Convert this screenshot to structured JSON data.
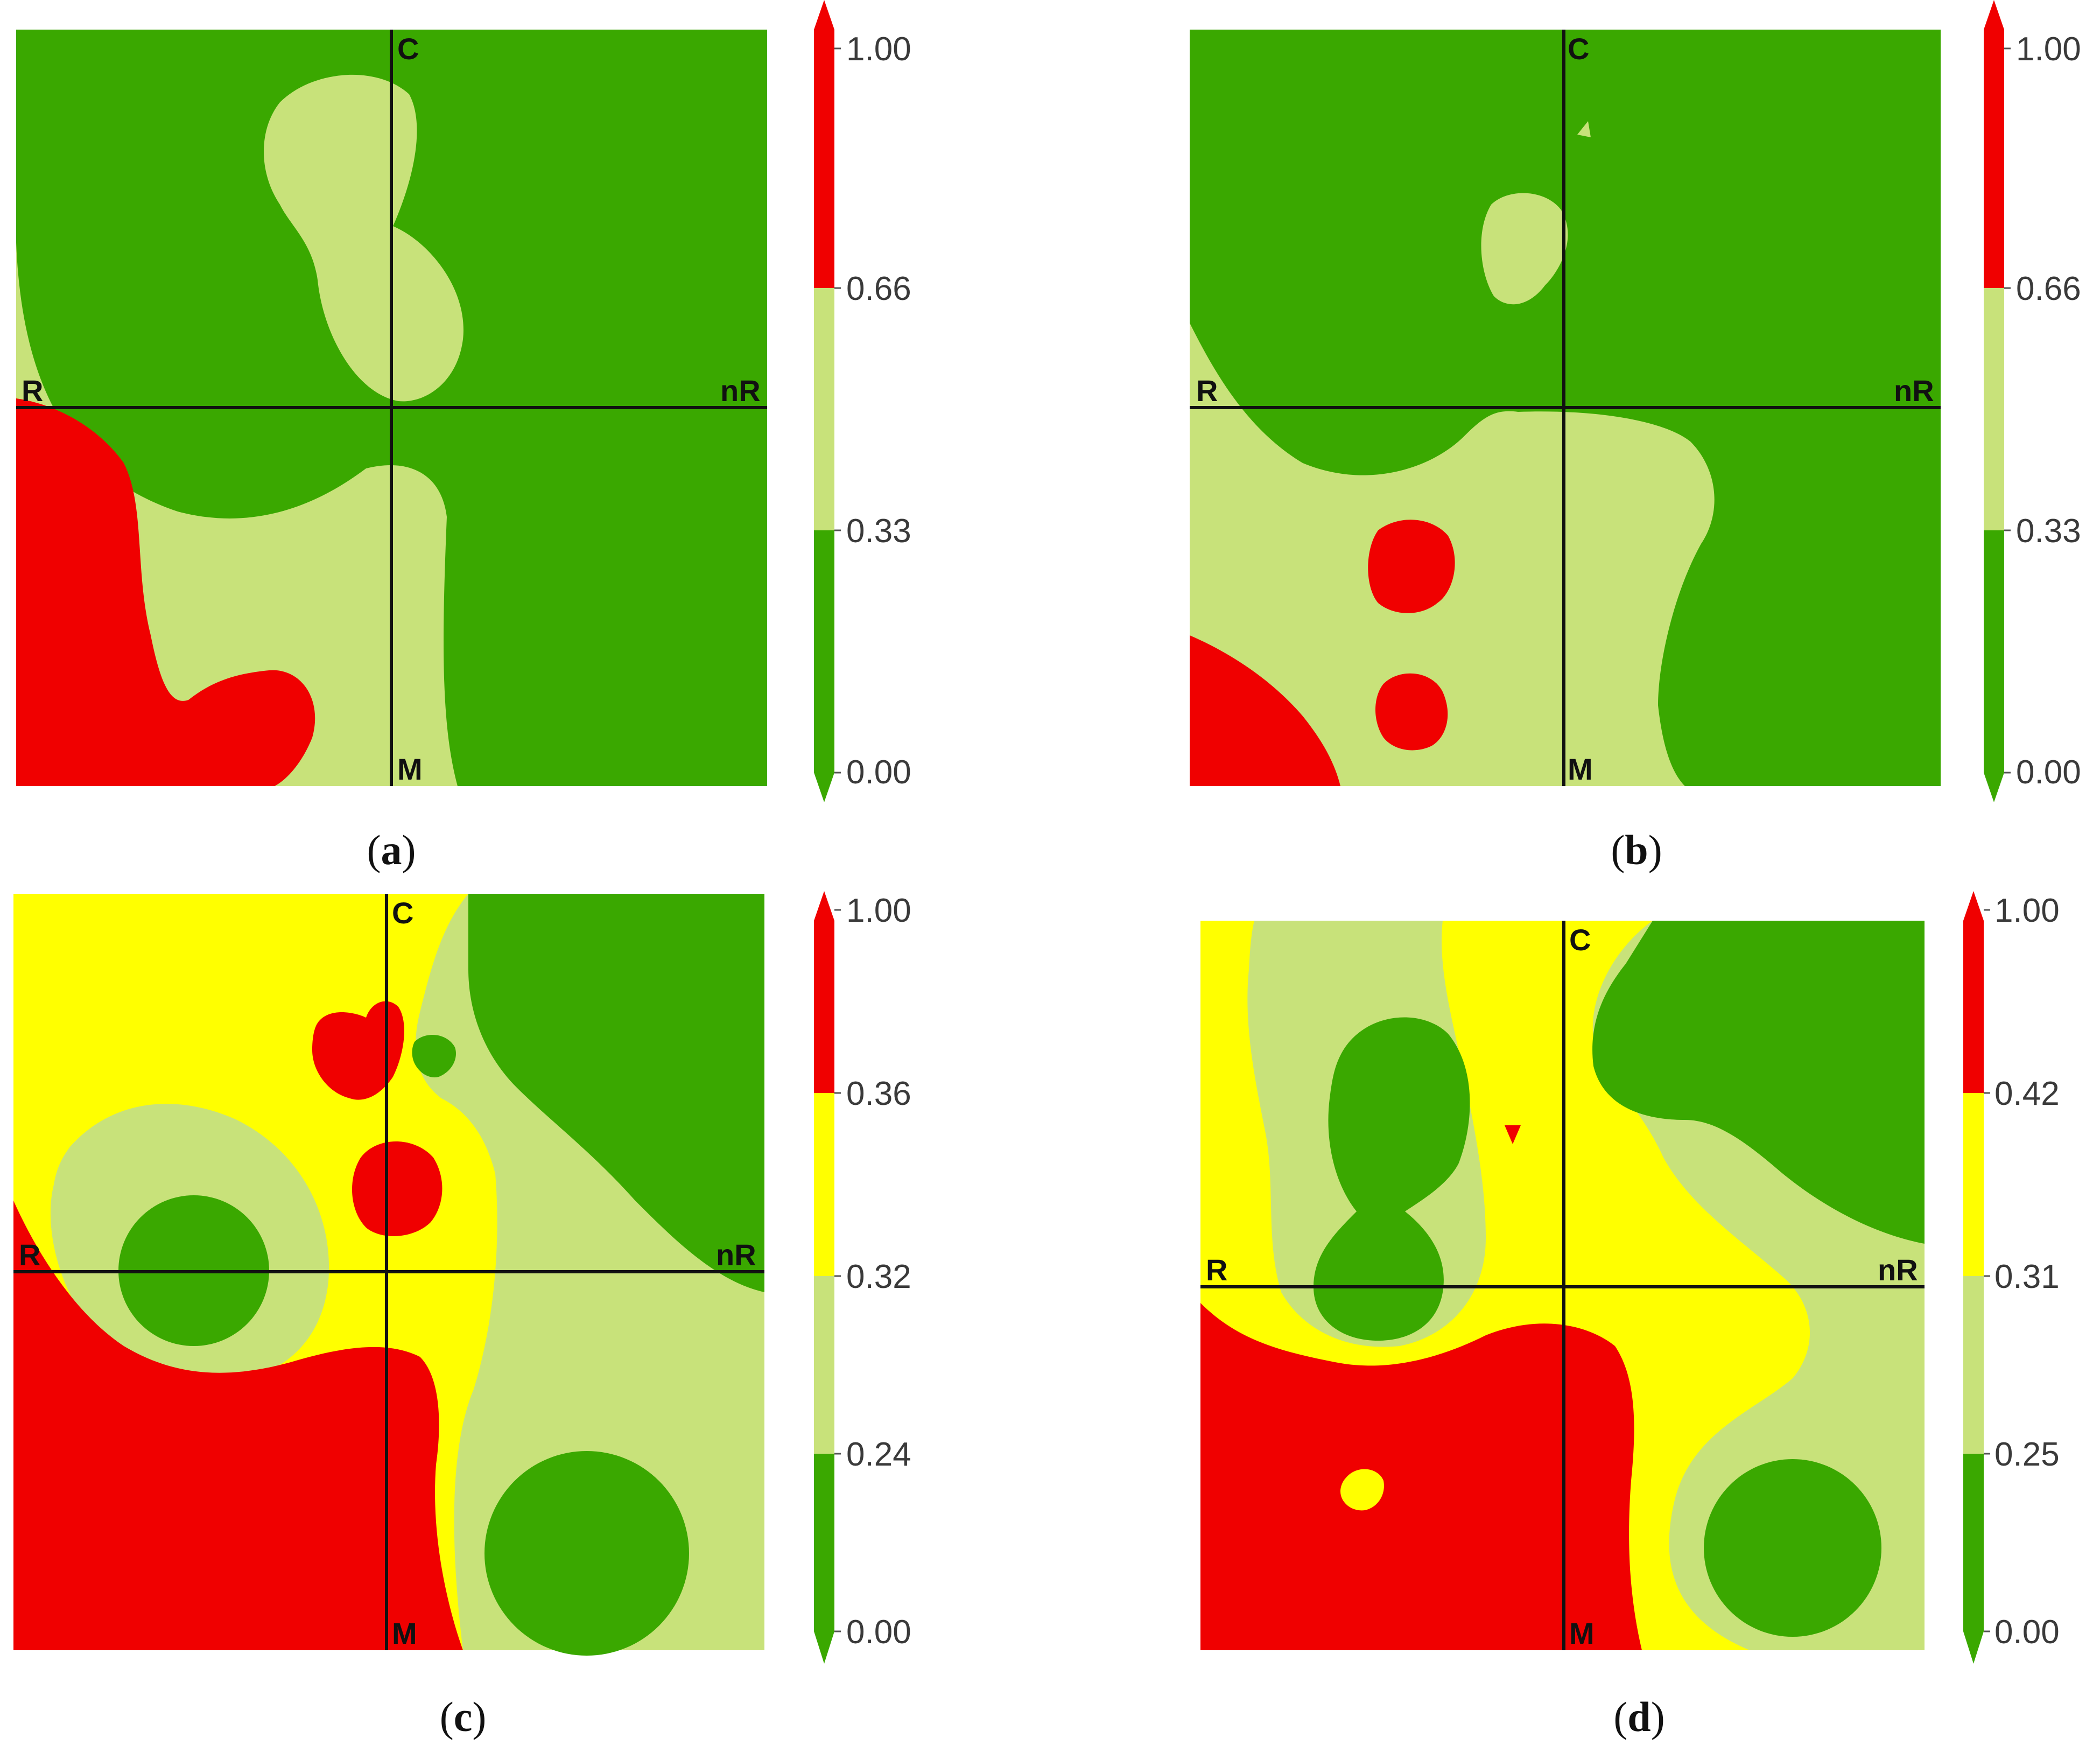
{
  "colors": {
    "dark_green": "#3aa800",
    "light_green": "#c8e27a",
    "yellow": "#ffff00",
    "red": "#f00000",
    "axis": "#111111"
  },
  "chart_data": [
    {
      "type": "heatmap",
      "panel_label": "a",
      "axis_labels": {
        "top": "C",
        "bottom": "M",
        "left": "R",
        "right": "nR"
      },
      "colorbar": {
        "ticks": [
          "0.00",
          "0.33",
          "0.66",
          "1.00"
        ],
        "bands": [
          {
            "from": 0.0,
            "to": 0.33,
            "color": "#3aa800"
          },
          {
            "from": 0.33,
            "to": 0.66,
            "color": "#c8e27a"
          },
          {
            "from": 0.66,
            "to": 1.0,
            "color": "#f00000"
          }
        ]
      }
    },
    {
      "type": "heatmap",
      "panel_label": "b",
      "axis_labels": {
        "top": "C",
        "bottom": "M",
        "left": "R",
        "right": "nR"
      },
      "colorbar": {
        "ticks": [
          "0.00",
          "0.33",
          "0.66",
          "1.00"
        ],
        "bands": [
          {
            "from": 0.0,
            "to": 0.33,
            "color": "#3aa800"
          },
          {
            "from": 0.33,
            "to": 0.66,
            "color": "#c8e27a"
          },
          {
            "from": 0.66,
            "to": 1.0,
            "color": "#f00000"
          }
        ]
      }
    },
    {
      "type": "heatmap",
      "panel_label": "c",
      "axis_labels": {
        "top": "C",
        "bottom": "M",
        "left": "R",
        "right": "nR"
      },
      "colorbar": {
        "ticks": [
          "0.00",
          "0.24",
          "0.32",
          "0.36",
          "1.00"
        ],
        "bands": [
          {
            "from": 0.0,
            "to": 0.24,
            "color": "#3aa800"
          },
          {
            "from": 0.24,
            "to": 0.32,
            "color": "#c8e27a"
          },
          {
            "from": 0.32,
            "to": 0.36,
            "color": "#ffff00"
          },
          {
            "from": 0.36,
            "to": 1.0,
            "color": "#f00000"
          }
        ]
      }
    },
    {
      "type": "heatmap",
      "panel_label": "d",
      "axis_labels": {
        "top": "C",
        "bottom": "M",
        "left": "R",
        "right": "nR"
      },
      "colorbar": {
        "ticks": [
          "0.00",
          "0.25",
          "0.31",
          "0.42",
          "1.00"
        ],
        "bands": [
          {
            "from": 0.0,
            "to": 0.25,
            "color": "#3aa800"
          },
          {
            "from": 0.25,
            "to": 0.31,
            "color": "#c8e27a"
          },
          {
            "from": 0.31,
            "to": 0.42,
            "color": "#ffff00"
          },
          {
            "from": 0.42,
            "to": 1.0,
            "color": "#f00000"
          }
        ]
      }
    }
  ]
}
